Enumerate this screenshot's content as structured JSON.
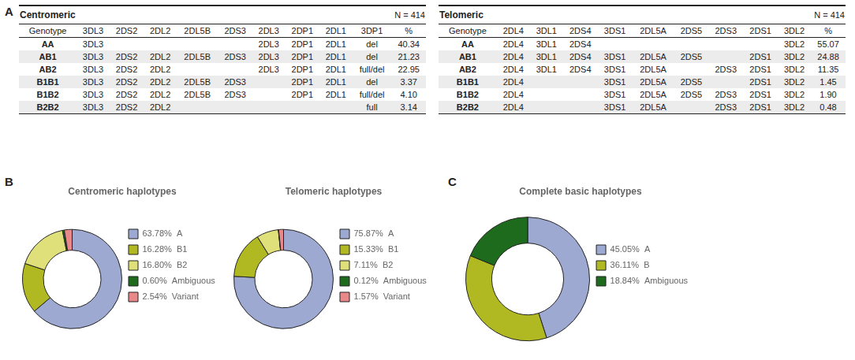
{
  "chart_data": [
    {
      "type": "table",
      "title": "Centromeric",
      "subtitle": "N = 414",
      "annotations": [
        "A"
      ],
      "categories": [
        "Genotype",
        "3DL3",
        "2DS2",
        "2DL2",
        "2DL5B",
        "2DS3",
        "2DL3",
        "2DP1",
        "2DL1",
        "3DP1",
        "%"
      ],
      "rows": [
        [
          "AA",
          "3DL3",
          null,
          null,
          null,
          null,
          "2DL3",
          "2DP1",
          "2DL1",
          "del",
          "40.34"
        ],
        [
          "AB1",
          "3DL3",
          "2DS2",
          "2DL2",
          "2DL5B",
          "2DS3",
          "2DL3",
          "2DP1",
          "2DL1",
          "del",
          "21.23"
        ],
        [
          "AB2",
          "3DL3",
          "2DS2",
          "2DL2",
          null,
          null,
          "2DL3",
          "2DP1",
          "2DL1",
          "full/del",
          "22.95"
        ],
        [
          "B1B1",
          "3DL3",
          "2DS2",
          "2DL2",
          "2DL5B",
          "2DS3",
          null,
          "2DP1",
          "2DL1",
          "del",
          "3.37"
        ],
        [
          "B1B2",
          "3DL3",
          "2DS2",
          "2DL2",
          "2DL5B",
          "2DS3",
          null,
          "2DP1",
          "2DL1",
          "full/del",
          "4.10"
        ],
        [
          "B2B2",
          "3DL3",
          "2DS2",
          "2DL2",
          null,
          null,
          null,
          null,
          null,
          "full",
          "3.14"
        ]
      ]
    },
    {
      "type": "table",
      "title": "Telomeric",
      "subtitle": "N = 414",
      "categories": [
        "Genotype",
        "2DL4",
        "3DL1",
        "2DS4",
        "3DS1",
        "2DL5A",
        "2DS5",
        "2DS3",
        "2DS1",
        "3DL2",
        "%"
      ],
      "rows": [
        [
          "AA",
          "2DL4",
          "3DL1",
          "2DS4",
          null,
          null,
          null,
          null,
          null,
          "3DL2",
          "55.07"
        ],
        [
          "AB1",
          "2DL4",
          "3DL1",
          "2DS4",
          "3DS1",
          "2DL5A",
          "2DS5",
          null,
          "2DS1",
          "3DL2",
          "24.88"
        ],
        [
          "AB2",
          "2DL4",
          "3DL1",
          "2DS4",
          "3DS1",
          "2DL5A",
          null,
          "2DS3",
          "2DS1",
          "3DL2",
          "11.35"
        ],
        [
          "B1B1",
          "2DL4",
          null,
          null,
          "3DS1",
          "2DL5A",
          "2DS5",
          null,
          "2DS1",
          "3DL2",
          "1.45"
        ],
        [
          "B1B2",
          "2DL4",
          null,
          null,
          "3DS1",
          "2DL5A",
          "2DS5",
          "2DS3",
          "2DS1",
          "3DL2",
          "1.90"
        ],
        [
          "B2B2",
          "2DL4",
          null,
          null,
          "3DS1",
          "2DL5A",
          null,
          "2DS3",
          "2DS1",
          "3DL2",
          "0.48"
        ]
      ]
    },
    {
      "type": "doughnut",
      "title": "Centromeric haplotypes",
      "annotations": [
        "B"
      ],
      "legend": "right",
      "categories": [
        "63.78%  A",
        "16.28%  B1",
        "16.80%  B2",
        "0.60%  Ambiguous",
        "2.54%  Variant"
      ],
      "values": [
        63.78,
        16.28,
        16.8,
        0.6,
        2.54
      ],
      "colors": [
        "#9da9d0",
        "#b0b822",
        "#e0e07a",
        "#1e6b1e",
        "#e88888"
      ]
    },
    {
      "type": "doughnut",
      "title": "Telomeric haplotypes",
      "legend": "right",
      "categories": [
        "75.87%  A",
        "15.33%  B1",
        "7.11%  B2",
        "0.12%  Ambiguous",
        "1.57%  Variant"
      ],
      "values": [
        75.87,
        15.33,
        7.11,
        0.12,
        1.57
      ],
      "colors": [
        "#9da9d0",
        "#b0b822",
        "#e0e07a",
        "#1e6b1e",
        "#e88888"
      ]
    },
    {
      "type": "doughnut",
      "title": "Complete basic haplotypes",
      "annotations": [
        "C"
      ],
      "legend": "right",
      "categories": [
        "45.05%  A",
        "36.11%  B",
        "18.84%  Ambiguous"
      ],
      "values": [
        45.05,
        36.11,
        18.84
      ],
      "colors": [
        "#9da9d0",
        "#b0b822",
        "#1e6b1e"
      ]
    }
  ]
}
